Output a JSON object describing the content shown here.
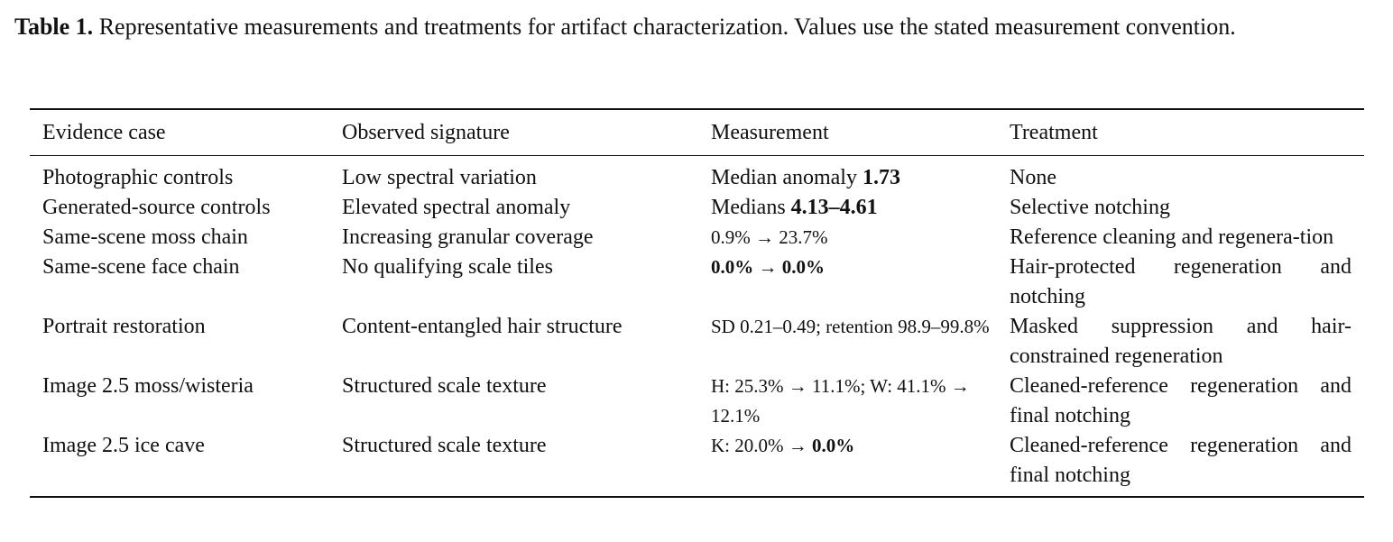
{
  "caption": {
    "label": "Table 1.",
    "text": " Representative measurements and treatments for artifact characterization. Values use the stated measurement convention."
  },
  "table": {
    "headers": [
      "Evidence case",
      "Observed signature",
      "Measurement",
      "Treatment"
    ],
    "rows": [
      {
        "case": "Photographic controls",
        "signature": "Low spectral variation",
        "measurement": {
          "pre": "Median anomaly ",
          "bold": "1.73",
          "post": ""
        },
        "treatment": "None"
      },
      {
        "case": "Generated-source controls",
        "signature": "Elevated spectral anomaly",
        "measurement": {
          "pre": "Medians ",
          "bold": "4.13–4.61",
          "post": ""
        },
        "treatment": "Selective notching"
      },
      {
        "case": "Same-scene moss chain",
        "signature": "Increasing granular coverage",
        "measurement": {
          "pre": "0.9% → 23.7%",
          "bold": "",
          "post": ""
        },
        "treatment": "Reference cleaning and regenera-tion"
      },
      {
        "case": "Same-scene face chain",
        "signature": "No qualifying scale tiles",
        "measurement": {
          "bold": "0.0%",
          "mid": " → ",
          "bold2": "0.0%"
        },
        "treatment": "Hair-protected regeneration and notching"
      },
      {
        "case": "Portrait restoration",
        "signature": "Content-entangled hair structure",
        "measurement": {
          "pre": "SD 0.21–0.49; retention 98.9–99.8%",
          "bold": "",
          "post": ""
        },
        "treatment": "Masked suppression and hair-constrained regeneration"
      },
      {
        "case": "Image 2.5 moss/wisteria",
        "signature": "Structured scale texture",
        "measurement": {
          "pre": "H: 25.3% → 11.1%; W: 41.1% → 12.1%",
          "bold": "",
          "post": ""
        },
        "treatment": "Cleaned-reference regeneration and final notching"
      },
      {
        "case": "Image 2.5 ice cave",
        "signature": "Structured scale texture",
        "measurement": {
          "pre": "K: 20.0% → ",
          "bold": "0.0%",
          "post": ""
        },
        "treatment": "Cleaned-reference regeneration and final notching"
      }
    ]
  }
}
